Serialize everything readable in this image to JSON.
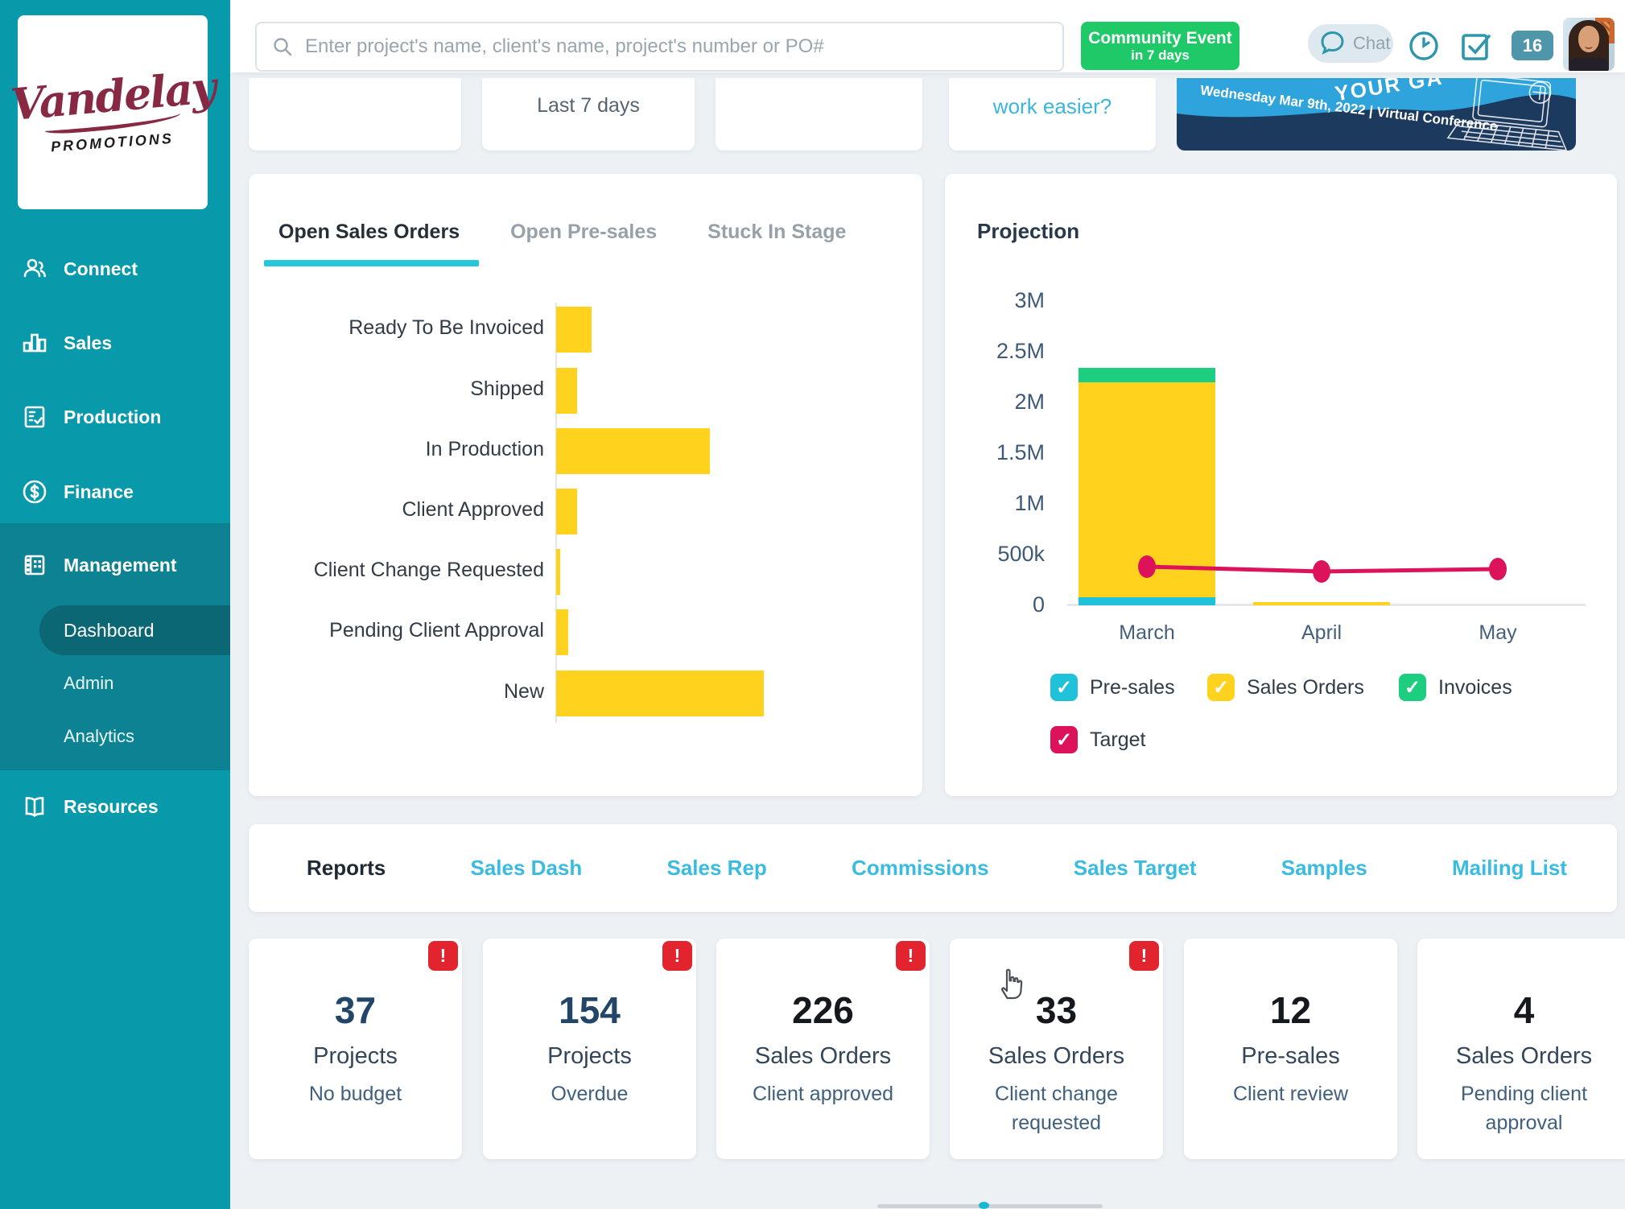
{
  "brand": {
    "name": "Vandelay",
    "tagline": "PROMOTIONS"
  },
  "topbar": {
    "search_placeholder": "Enter project's name, client's name, project's number or PO#",
    "event_line1": "Community Event",
    "event_line2": "in 7 days",
    "chat_label": "Chat",
    "notification_count": "16",
    "icons": [
      "search-icon",
      "chat-bubble-icon",
      "clock-icon",
      "tasks-checkbox-icon",
      "notification-count-badge",
      "user-avatar"
    ]
  },
  "sidebar": {
    "items": [
      {
        "label": "Connect",
        "icon": "people-icon"
      },
      {
        "label": "Sales",
        "icon": "bar-chart-icon"
      },
      {
        "label": "Production",
        "icon": "clipboard-check-icon"
      },
      {
        "label": "Finance",
        "icon": "dollar-circle-icon"
      },
      {
        "label": "Management",
        "icon": "building-icon",
        "expanded": true
      },
      {
        "label": "Resources",
        "icon": "book-icon"
      }
    ],
    "management_children": [
      {
        "label": "Dashboard",
        "active": true
      },
      {
        "label": "Admin",
        "active": false
      },
      {
        "label": "Analytics",
        "active": false
      }
    ]
  },
  "peek": {
    "last7": "Last 7 days",
    "work_easier": "work easier?"
  },
  "banner": {
    "arc_text": "YOUR GA",
    "date_line": "Wednesday Mar 9th, 2022  |  Virtual Conference"
  },
  "tabs": [
    {
      "label": "Open Sales Orders",
      "active": true
    },
    {
      "label": "Open Pre-sales",
      "active": false
    },
    {
      "label": "Stuck In Stage",
      "active": false
    }
  ],
  "chart_data": [
    {
      "type": "bar",
      "orientation": "horizontal",
      "title": "Open Sales Orders",
      "categories": [
        "Ready To Be Invoiced",
        "Shipped",
        "In Production",
        "Client Approved",
        "Client Change Requested",
        "Pending Client Approval",
        "New"
      ],
      "values": [
        17,
        10,
        74,
        10,
        2,
        6,
        100
      ],
      "value_unit": "percent_of_longest_bar",
      "bar_color": "#FFD21E",
      "grid": false
    },
    {
      "type": "bar",
      "subtype": "stacked-with-line",
      "title": "Projection",
      "categories": [
        "March",
        "April",
        "May"
      ],
      "series": [
        {
          "name": "Pre-sales",
          "kind": "bar",
          "color": "#1FC2D9",
          "values": [
            80000,
            0,
            0
          ]
        },
        {
          "name": "Sales Orders",
          "kind": "bar",
          "color": "#FFD21E",
          "values": [
            2120000,
            30000,
            0
          ]
        },
        {
          "name": "Invoices",
          "kind": "bar",
          "color": "#1DCD80",
          "values": [
            140000,
            0,
            0
          ]
        },
        {
          "name": "Target",
          "kind": "line",
          "color": "#DC135B",
          "values": [
            380000,
            330000,
            360000
          ]
        }
      ],
      "ylim": [
        0,
        3000000
      ],
      "yticks": [
        "3M",
        "2.5M",
        "2M",
        "1.5M",
        "1M",
        "500k",
        "0"
      ],
      "legend": [
        {
          "label": "Pre-sales",
          "color": "#1FC2D9",
          "checked": true
        },
        {
          "label": "Sales Orders",
          "color": "#FFD21E",
          "checked": true
        },
        {
          "label": "Invoices",
          "color": "#1DCD80",
          "checked": true
        },
        {
          "label": "Target",
          "color": "#DC135B",
          "checked": true
        }
      ],
      "legend_position": "bottom",
      "grid": false
    }
  ],
  "reports_nav": [
    {
      "label": "Reports",
      "active": true
    },
    {
      "label": "Sales Dash",
      "active": false
    },
    {
      "label": "Sales Rep",
      "active": false
    },
    {
      "label": "Commissions",
      "active": false
    },
    {
      "label": "Sales Target",
      "active": false
    },
    {
      "label": "Samples",
      "active": false
    },
    {
      "label": "Mailing List",
      "active": false
    }
  ],
  "stat_cards": [
    {
      "value": "37",
      "label": "Projects",
      "sub": "No budget",
      "alert": true,
      "value_color": "#224668"
    },
    {
      "value": "154",
      "label": "Projects",
      "sub": "Overdue",
      "alert": true,
      "value_color": "#224668"
    },
    {
      "value": "226",
      "label": "Sales Orders",
      "sub": "Client approved",
      "alert": true,
      "value_color": "#15181d"
    },
    {
      "value": "33",
      "label": "Sales Orders",
      "sub": "Client change requested",
      "alert": true,
      "value_color": "#15181d"
    },
    {
      "value": "12",
      "label": "Pre-sales",
      "sub": "Client review",
      "alert": false,
      "value_color": "#15181d"
    },
    {
      "value": "4",
      "label": "Sales Orders",
      "sub": "Pending client approval",
      "alert": false,
      "value_color": "#15181d"
    }
  ],
  "colors": {
    "sidebar": "#0899AB",
    "sidebar_section": "#0C8292",
    "sidebar_active": "#0B6774",
    "accent_cyan": "#26C6DB",
    "link_cyan": "#39BCDF",
    "green_button": "#1FC967",
    "alert_red": "#E2242F",
    "bar_yellow": "#FFD21E",
    "target_pink": "#DC135B",
    "invoice_green": "#1DCD80",
    "presales_cyan": "#1FC2D9",
    "logo_maroon": "#872943"
  }
}
